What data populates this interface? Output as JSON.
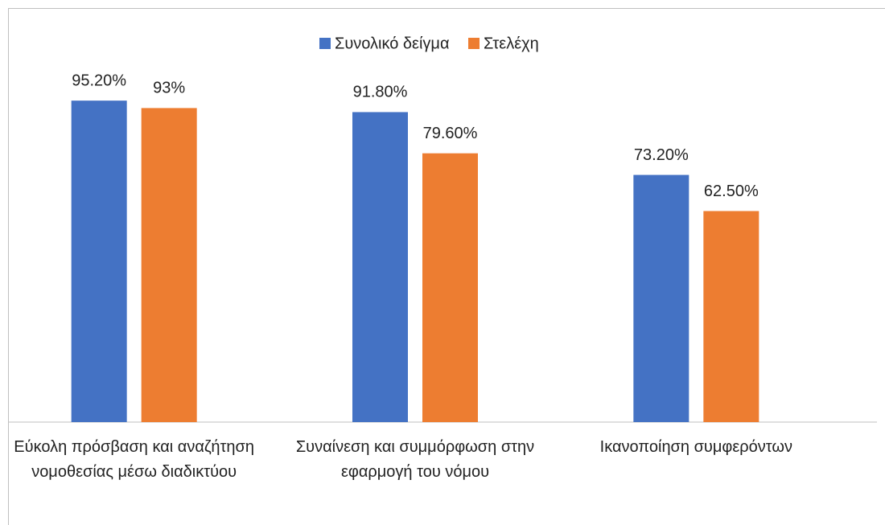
{
  "chart_data": {
    "type": "bar",
    "categories": [
      "Εύκολη πρόσβαση και αναζήτηση νομοθεσίας μέσω διαδικτύου",
      "Συναίνεση και συμμόρφωση στην εφαρμογή του νόμου",
      "Ικανοποίηση συμφερόντων"
    ],
    "series": [
      {
        "name": "Συνολικό δείγμα",
        "color": "#4472c4",
        "values": [
          95.2,
          91.8,
          73.2
        ],
        "value_labels": [
          "95.20%",
          "91.80%",
          "73.20%"
        ]
      },
      {
        "name": "Στελέχη",
        "color": "#ed7d31",
        "values": [
          93,
          79.6,
          62.5
        ],
        "value_labels": [
          "93%",
          "79.60%",
          "62.50%"
        ]
      }
    ],
    "ylim": [
      0,
      100
    ],
    "legend": "top"
  }
}
